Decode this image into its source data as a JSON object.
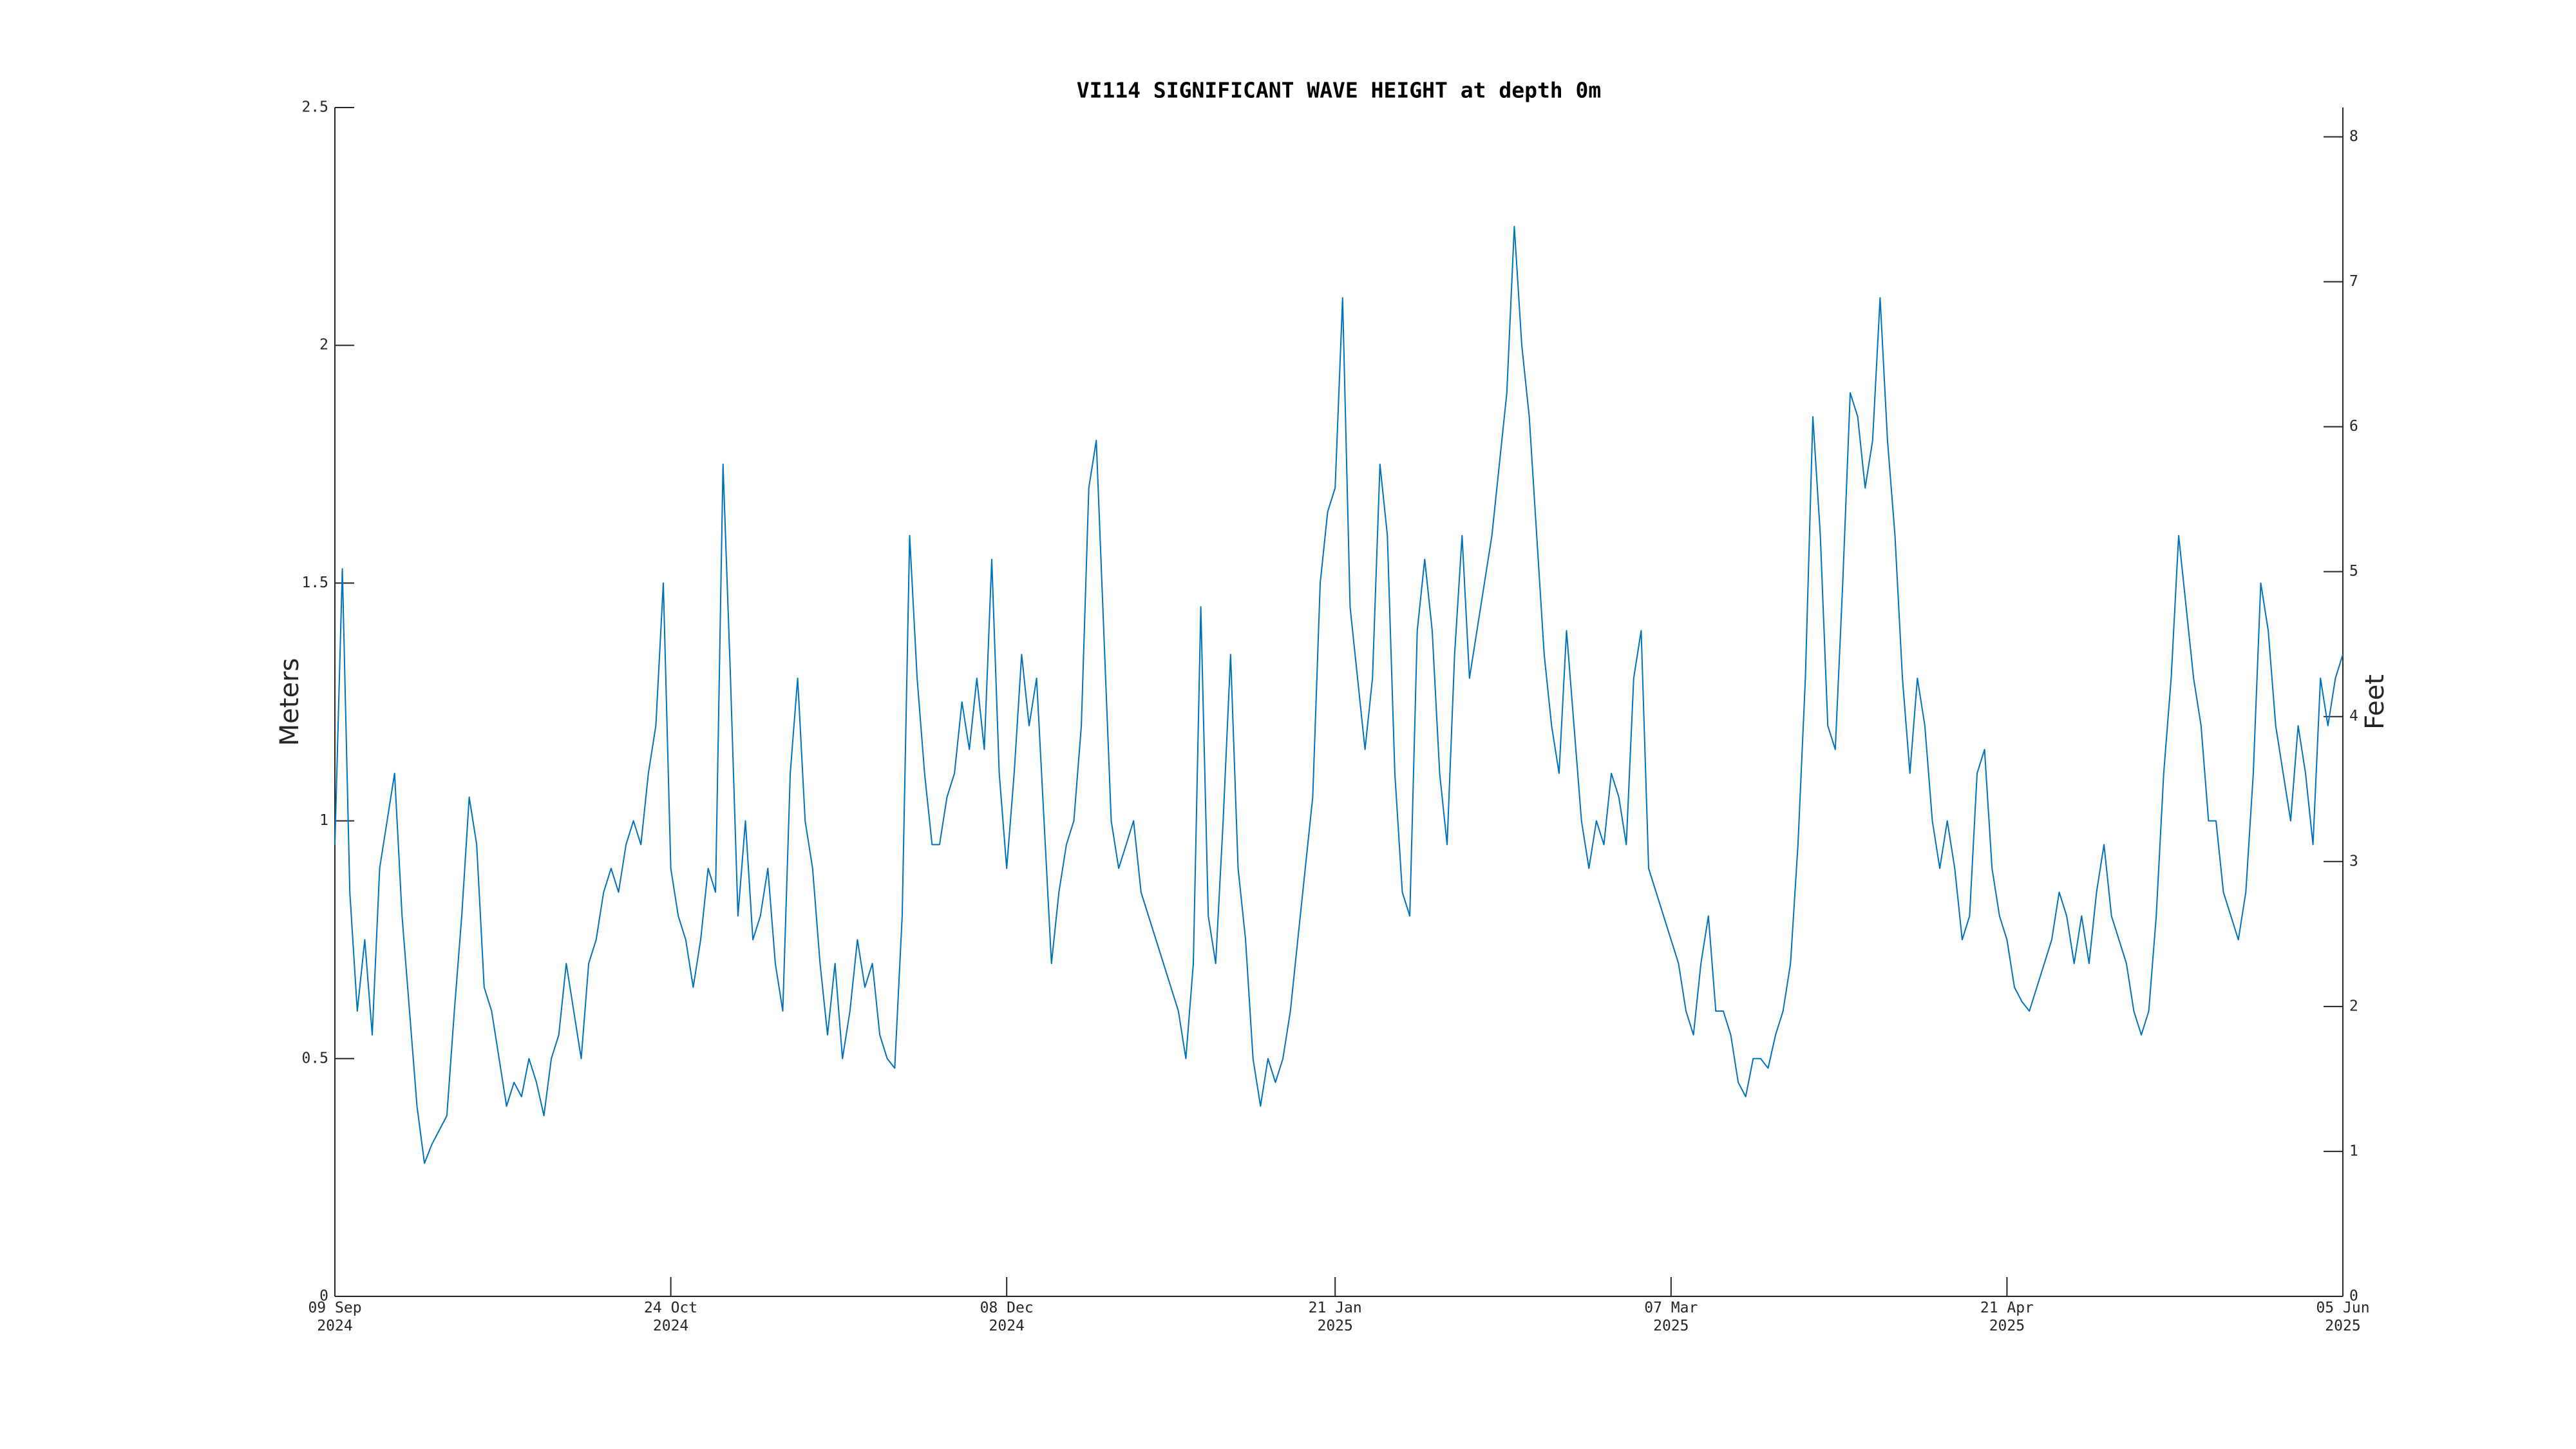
{
  "chart_data": {
    "type": "line",
    "title": "VI114 SIGNIFICANT WAVE HEIGHT at depth 0m",
    "ylabel": "Meters",
    "y2label": "Feet",
    "color": "#0072bd",
    "xlim": [
      "2024-09-09",
      "2025-06-05"
    ],
    "xticks": [
      {
        "value": "2024-09-09",
        "label": "09 Sep\n2024"
      },
      {
        "value": "2024-10-24",
        "label": "24 Oct\n2024"
      },
      {
        "value": "2024-12-08",
        "label": "08 Dec\n2024"
      },
      {
        "value": "2025-01-21",
        "label": "21 Jan\n2025"
      },
      {
        "value": "2025-03-07",
        "label": "07 Mar\n2025"
      },
      {
        "value": "2025-04-21",
        "label": "21 Apr\n2025"
      },
      {
        "value": "2025-06-05",
        "label": "05 Jun\n2025"
      }
    ],
    "ylim": [
      0,
      2.5
    ],
    "yticks": [
      0,
      0.5,
      1,
      1.5,
      2,
      2.5
    ],
    "y2lim": [
      0,
      8.2021
    ],
    "y2ticks": [
      0,
      1,
      2,
      3,
      4,
      5,
      6,
      7,
      8
    ],
    "x": [
      "2024-09-09",
      "2024-09-10",
      "2024-09-11",
      "2024-09-12",
      "2024-09-13",
      "2024-09-14",
      "2024-09-15",
      "2024-09-16",
      "2024-09-17",
      "2024-09-18",
      "2024-09-19",
      "2024-09-20",
      "2024-09-21",
      "2024-09-22",
      "2024-09-23",
      "2024-09-24",
      "2024-09-25",
      "2024-09-26",
      "2024-09-27",
      "2024-09-28",
      "2024-09-29",
      "2024-09-30",
      "2024-10-01",
      "2024-10-02",
      "2024-10-03",
      "2024-10-04",
      "2024-10-05",
      "2024-10-06",
      "2024-10-07",
      "2024-10-08",
      "2024-10-09",
      "2024-10-10",
      "2024-10-11",
      "2024-10-12",
      "2024-10-13",
      "2024-10-14",
      "2024-10-15",
      "2024-10-16",
      "2024-10-17",
      "2024-10-18",
      "2024-10-19",
      "2024-10-20",
      "2024-10-21",
      "2024-10-22",
      "2024-10-23",
      "2024-10-24",
      "2024-10-25",
      "2024-10-26",
      "2024-10-27",
      "2024-10-28",
      "2024-10-29",
      "2024-10-30",
      "2024-10-31",
      "2024-11-01",
      "2024-11-02",
      "2024-11-03",
      "2024-11-04",
      "2024-11-05",
      "2024-11-06",
      "2024-11-07",
      "2024-11-08",
      "2024-11-09",
      "2024-11-10",
      "2024-11-11",
      "2024-11-12",
      "2024-11-13",
      "2024-11-14",
      "2024-11-15",
      "2024-11-16",
      "2024-11-17",
      "2024-11-18",
      "2024-11-19",
      "2024-11-20",
      "2024-11-21",
      "2024-11-22",
      "2024-11-23",
      "2024-11-24",
      "2024-11-25",
      "2024-11-26",
      "2024-11-27",
      "2024-11-28",
      "2024-11-29",
      "2024-11-30",
      "2024-12-01",
      "2024-12-02",
      "2024-12-03",
      "2024-12-04",
      "2024-12-05",
      "2024-12-06",
      "2024-12-07",
      "2024-12-08",
      "2024-12-09",
      "2024-12-10",
      "2024-12-11",
      "2024-12-12",
      "2024-12-13",
      "2024-12-14",
      "2024-12-15",
      "2024-12-16",
      "2024-12-17",
      "2024-12-18",
      "2024-12-19",
      "2024-12-20",
      "2024-12-21",
      "2024-12-22",
      "2024-12-23",
      "2024-12-24",
      "2024-12-25",
      "2024-12-26",
      "2024-12-27",
      "2024-12-28",
      "2024-12-29",
      "2024-12-30",
      "2024-12-31",
      "2025-01-01",
      "2025-01-02",
      "2025-01-03",
      "2025-01-04",
      "2025-01-05",
      "2025-01-06",
      "2025-01-07",
      "2025-01-08",
      "2025-01-09",
      "2025-01-10",
      "2025-01-11",
      "2025-01-12",
      "2025-01-13",
      "2025-01-14",
      "2025-01-15",
      "2025-01-16",
      "2025-01-17",
      "2025-01-18",
      "2025-01-19",
      "2025-01-20",
      "2025-01-21",
      "2025-01-22",
      "2025-01-23",
      "2025-01-24",
      "2025-01-25",
      "2025-01-26",
      "2025-01-27",
      "2025-01-28",
      "2025-01-29",
      "2025-01-30",
      "2025-01-31",
      "2025-02-01",
      "2025-02-02",
      "2025-02-03",
      "2025-02-04",
      "2025-02-05",
      "2025-02-06",
      "2025-02-07",
      "2025-02-08",
      "2025-02-09",
      "2025-02-10",
      "2025-02-11",
      "2025-02-12",
      "2025-02-13",
      "2025-02-14",
      "2025-02-15",
      "2025-02-16",
      "2025-02-17",
      "2025-02-18",
      "2025-02-19",
      "2025-02-20",
      "2025-02-21",
      "2025-02-22",
      "2025-02-23",
      "2025-02-24",
      "2025-02-25",
      "2025-02-26",
      "2025-02-27",
      "2025-02-28",
      "2025-03-01",
      "2025-03-02",
      "2025-03-03",
      "2025-03-04",
      "2025-03-05",
      "2025-03-06",
      "2025-03-07",
      "2025-03-08",
      "2025-03-09",
      "2025-03-10",
      "2025-03-11",
      "2025-03-12",
      "2025-03-13",
      "2025-03-14",
      "2025-03-15",
      "2025-03-16",
      "2025-03-17",
      "2025-03-18",
      "2025-03-19",
      "2025-03-20",
      "2025-03-21",
      "2025-03-22",
      "2025-03-23",
      "2025-03-24",
      "2025-03-25",
      "2025-03-26",
      "2025-03-27",
      "2025-03-28",
      "2025-03-29",
      "2025-03-30",
      "2025-03-31",
      "2025-04-01",
      "2025-04-02",
      "2025-04-03",
      "2025-04-04",
      "2025-04-05",
      "2025-04-06",
      "2025-04-07",
      "2025-04-08",
      "2025-04-09",
      "2025-04-10",
      "2025-04-11",
      "2025-04-12",
      "2025-04-13",
      "2025-04-14",
      "2025-04-15",
      "2025-04-16",
      "2025-04-17",
      "2025-04-18",
      "2025-04-19",
      "2025-04-20",
      "2025-04-21",
      "2025-04-22",
      "2025-04-23",
      "2025-04-24",
      "2025-04-25",
      "2025-04-26",
      "2025-04-27",
      "2025-04-28",
      "2025-04-29",
      "2025-04-30",
      "2025-05-01",
      "2025-05-02",
      "2025-05-03",
      "2025-05-04",
      "2025-05-05",
      "2025-05-06",
      "2025-05-07",
      "2025-05-08",
      "2025-05-09",
      "2025-05-10",
      "2025-05-11",
      "2025-05-12",
      "2025-05-13",
      "2025-05-14",
      "2025-05-15",
      "2025-05-16",
      "2025-05-17",
      "2025-05-18",
      "2025-05-19",
      "2025-05-20",
      "2025-05-21",
      "2025-05-22",
      "2025-05-23",
      "2025-05-24",
      "2025-05-25",
      "2025-05-26",
      "2025-05-27",
      "2025-05-28",
      "2025-05-29",
      "2025-05-30",
      "2025-05-31",
      "2025-06-01",
      "2025-06-02",
      "2025-06-03",
      "2025-06-04",
      "2025-06-05"
    ],
    "values": [
      0.95,
      1.53,
      0.85,
      0.6,
      0.75,
      0.55,
      0.9,
      1.0,
      1.1,
      0.8,
      0.6,
      0.4,
      0.28,
      0.32,
      0.35,
      0.38,
      0.6,
      0.8,
      1.05,
      0.95,
      0.65,
      0.6,
      0.5,
      0.4,
      0.45,
      0.42,
      0.5,
      0.45,
      0.38,
      0.5,
      0.55,
      0.7,
      0.6,
      0.5,
      0.7,
      0.75,
      0.85,
      0.9,
      0.85,
      0.95,
      1.0,
      0.95,
      1.1,
      1.2,
      1.5,
      0.9,
      0.8,
      0.75,
      0.65,
      0.75,
      0.9,
      0.85,
      1.75,
      1.3,
      0.8,
      1.0,
      0.75,
      0.8,
      0.9,
      0.7,
      0.6,
      1.1,
      1.3,
      1.0,
      0.9,
      0.7,
      0.55,
      0.7,
      0.5,
      0.6,
      0.75,
      0.65,
      0.7,
      0.55,
      0.5,
      0.48,
      0.8,
      1.6,
      1.3,
      1.1,
      0.95,
      0.95,
      1.05,
      1.1,
      1.25,
      1.15,
      1.3,
      1.15,
      1.55,
      1.1,
      0.9,
      1.1,
      1.35,
      1.2,
      1.3,
      1.0,
      0.7,
      0.85,
      0.95,
      1.0,
      1.2,
      1.7,
      1.8,
      1.4,
      1.0,
      0.9,
      0.95,
      1.0,
      0.85,
      0.8,
      0.75,
      0.7,
      0.65,
      0.6,
      0.5,
      0.7,
      1.45,
      0.8,
      0.7,
      1.0,
      1.35,
      0.9,
      0.75,
      0.5,
      0.4,
      0.5,
      0.45,
      0.5,
      0.6,
      0.75,
      0.9,
      1.05,
      1.5,
      1.65,
      1.7,
      2.1,
      1.45,
      1.3,
      1.15,
      1.3,
      1.75,
      1.6,
      1.1,
      0.85,
      0.8,
      1.4,
      1.55,
      1.4,
      1.1,
      0.95,
      1.35,
      1.6,
      1.3,
      1.4,
      1.5,
      1.6,
      1.75,
      1.9,
      2.25,
      2.0,
      1.85,
      1.6,
      1.35,
      1.2,
      1.1,
      1.4,
      1.2,
      1.0,
      0.9,
      1.0,
      0.95,
      1.1,
      1.05,
      0.95,
      1.3,
      1.4,
      0.9,
      0.85,
      0.8,
      0.75,
      0.7,
      0.6,
      0.55,
      0.7,
      0.8,
      0.6,
      0.6,
      0.55,
      0.45,
      0.42,
      0.5,
      0.5,
      0.48,
      0.55,
      0.6,
      0.7,
      0.95,
      1.3,
      1.85,
      1.6,
      1.2,
      1.15,
      1.5,
      1.9,
      1.85,
      1.7,
      1.8,
      2.1,
      1.8,
      1.6,
      1.3,
      1.1,
      1.3,
      1.2,
      1.0,
      0.9,
      1.0,
      0.9,
      0.75,
      0.8,
      1.1,
      1.15,
      0.9,
      0.8,
      0.75,
      0.65,
      0.62,
      0.6,
      0.65,
      0.7,
      0.75,
      0.85,
      0.8,
      0.7,
      0.8,
      0.7,
      0.85,
      0.95,
      0.8,
      0.75,
      0.7,
      0.6,
      0.55,
      0.6,
      0.8,
      1.1,
      1.3,
      1.6,
      1.45,
      1.3,
      1.2,
      1.0,
      1.0,
      0.85,
      0.8,
      0.75,
      0.85,
      1.1,
      1.5,
      1.4,
      1.2,
      1.1,
      1.0,
      1.2,
      1.1,
      0.95,
      1.3,
      1.2,
      1.3,
      1.35
    ]
  }
}
